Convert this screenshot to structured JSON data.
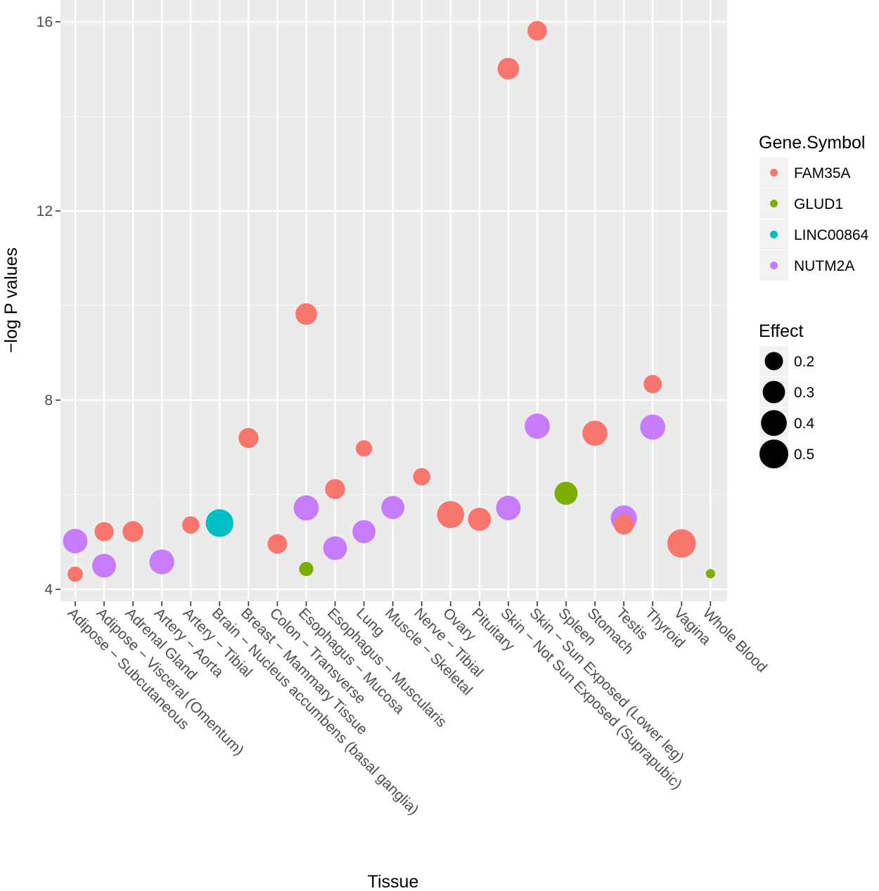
{
  "chart_data": {
    "type": "scatter",
    "xlabel": "Tissue",
    "ylabel": "−log P values",
    "ylim": [
      3.75,
      16.35
    ],
    "yticks": [
      4,
      8,
      12,
      16
    ],
    "ytick_labels": [
      "4",
      "8",
      "12",
      "16"
    ],
    "grid": true,
    "categories": [
      "Adipose − Subcutaneous",
      "Adipose − Visceral (Omentum)",
      "Adrenal Gland",
      "Artery − Aorta",
      "Artery − Tibial",
      "Brain − Nucleus accumbens (basal ganglia)",
      "Breast − Mammary Tissue",
      "Colon − Transverse",
      "Esophagus − Mucosa",
      "Esophagus − Muscularis",
      "Lung",
      "Muscle − Skeletal",
      "Nerve − Tibial",
      "Ovary",
      "Pituitary",
      "Skin − Not Sun Exposed (Suprapubic)",
      "Skin − Sun Exposed (Lower leg)",
      "Spleen",
      "Stomach",
      "Testis",
      "Thyroid",
      "Vagina",
      "Whole Blood"
    ],
    "color_legend": {
      "title": "Gene.Symbol",
      "position": "right",
      "entries": [
        {
          "name": "FAM35A",
          "color": "#F8766D"
        },
        {
          "name": "GLUD1",
          "color": "#7CAE00"
        },
        {
          "name": "LINC00864",
          "color": "#00BFC4"
        },
        {
          "name": "NUTM2A",
          "color": "#C77CFF"
        }
      ]
    },
    "size_legend": {
      "title": "Effect",
      "position": "right",
      "entries": [
        {
          "value": 0.2,
          "label": "0.2"
        },
        {
          "value": 0.3,
          "label": "0.3"
        },
        {
          "value": 0.4,
          "label": "0.4"
        },
        {
          "value": 0.5,
          "label": "0.5"
        }
      ]
    },
    "points": [
      {
        "tissue": 0,
        "gene": "FAM35A",
        "y": 4.32,
        "effect": 0.14
      },
      {
        "tissue": 0,
        "gene": "NUTM2A",
        "y": 5.02,
        "effect": 0.36
      },
      {
        "tissue": 1,
        "gene": "FAM35A",
        "y": 5.22,
        "effect": 0.22
      },
      {
        "tissue": 1,
        "gene": "NUTM2A",
        "y": 4.5,
        "effect": 0.34
      },
      {
        "tissue": 2,
        "gene": "FAM35A",
        "y": 5.22,
        "effect": 0.26
      },
      {
        "tissue": 3,
        "gene": "NUTM2A",
        "y": 4.58,
        "effect": 0.37
      },
      {
        "tissue": 4,
        "gene": "FAM35A",
        "y": 5.36,
        "effect": 0.18
      },
      {
        "tissue": 5,
        "gene": "LINC00864",
        "y": 5.4,
        "effect": 0.46
      },
      {
        "tissue": 6,
        "gene": "FAM35A",
        "y": 7.2,
        "effect": 0.24
      },
      {
        "tissue": 7,
        "gene": "FAM35A",
        "y": 4.96,
        "effect": 0.23
      },
      {
        "tissue": 8,
        "gene": "FAM35A",
        "y": 9.82,
        "effect": 0.28
      },
      {
        "tissue": 8,
        "gene": "NUTM2A",
        "y": 5.72,
        "effect": 0.38
      },
      {
        "tissue": 8,
        "gene": "GLUD1",
        "y": 4.43,
        "effect": 0.12
      },
      {
        "tissue": 9,
        "gene": "FAM35A",
        "y": 6.12,
        "effect": 0.24
      },
      {
        "tissue": 9,
        "gene": "NUTM2A",
        "y": 4.87,
        "effect": 0.34
      },
      {
        "tissue": 10,
        "gene": "FAM35A",
        "y": 6.98,
        "effect": 0.16
      },
      {
        "tissue": 10,
        "gene": "NUTM2A",
        "y": 5.22,
        "effect": 0.32
      },
      {
        "tissue": 11,
        "gene": "NUTM2A",
        "y": 5.73,
        "effect": 0.32
      },
      {
        "tissue": 12,
        "gene": "FAM35A",
        "y": 6.38,
        "effect": 0.18
      },
      {
        "tissue": 13,
        "gene": "FAM35A",
        "y": 5.58,
        "effect": 0.44
      },
      {
        "tissue": 14,
        "gene": "FAM35A",
        "y": 5.48,
        "effect": 0.32
      },
      {
        "tissue": 15,
        "gene": "FAM35A",
        "y": 15.01,
        "effect": 0.28
      },
      {
        "tissue": 15,
        "gene": "NUTM2A",
        "y": 5.72,
        "effect": 0.36
      },
      {
        "tissue": 16,
        "gene": "FAM35A",
        "y": 15.81,
        "effect": 0.23
      },
      {
        "tissue": 16,
        "gene": "NUTM2A",
        "y": 7.45,
        "effect": 0.38
      },
      {
        "tissue": 17,
        "gene": "GLUD1",
        "y": 6.03,
        "effect": 0.32
      },
      {
        "tissue": 18,
        "gene": "FAM35A",
        "y": 7.3,
        "effect": 0.38
      },
      {
        "tissue": 19,
        "gene": "NUTM2A",
        "y": 5.5,
        "effect": 0.41
      },
      {
        "tissue": 19,
        "gene": "FAM35A",
        "y": 5.37,
        "effect": 0.24
      },
      {
        "tissue": 20,
        "gene": "FAM35A",
        "y": 8.34,
        "effect": 0.2
      },
      {
        "tissue": 20,
        "gene": "NUTM2A",
        "y": 7.43,
        "effect": 0.38
      },
      {
        "tissue": 21,
        "gene": "FAM35A",
        "y": 4.97,
        "effect": 0.49
      },
      {
        "tissue": 22,
        "gene": "GLUD1",
        "y": 4.33,
        "effect": 0.05
      }
    ]
  }
}
